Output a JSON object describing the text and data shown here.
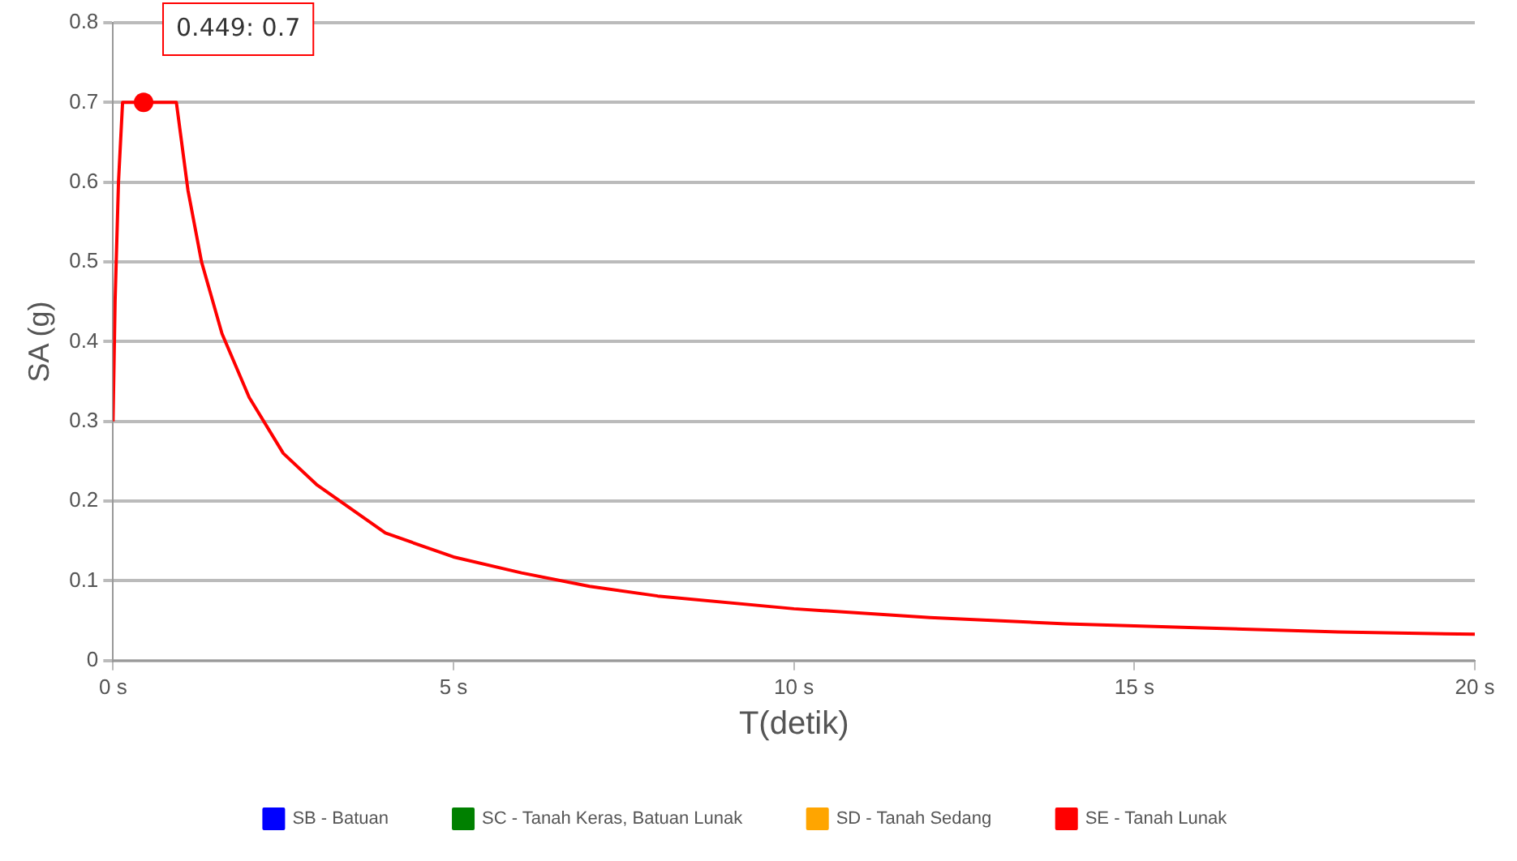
{
  "chart_data": {
    "type": "line",
    "xlabel": "T(detik)",
    "ylabel": "SA (g)",
    "xlim": [
      0,
      20
    ],
    "xticks": [
      {
        "value": 0,
        "label": "0 s"
      },
      {
        "value": 5,
        "label": "5 s"
      },
      {
        "value": 10,
        "label": "10 s"
      },
      {
        "value": 15,
        "label": "15 s"
      },
      {
        "value": 20,
        "label": "20 s"
      }
    ],
    "ylim": [
      0,
      0.8
    ],
    "yticks": [
      0,
      0.1,
      0.2,
      0.3,
      0.4,
      0.5,
      0.6,
      0.7,
      0.8
    ],
    "grid": "y",
    "legend": "bottom",
    "marker": "none",
    "x": [
      0,
      0.03,
      0.08,
      0.14,
      0.93,
      1.1,
      1.3,
      1.6,
      2,
      2.5,
      3,
      3.5,
      4,
      5,
      6,
      7,
      8,
      10,
      12,
      14,
      16,
      18,
      20
    ],
    "series": [
      {
        "name": "SB - Batuan",
        "color": "#0000ff",
        "values": [
          null,
          null,
          null,
          null,
          null,
          null,
          null,
          null,
          null,
          null,
          null,
          null,
          null,
          null,
          null,
          null,
          null,
          null,
          null,
          null,
          null,
          null,
          null
        ]
      },
      {
        "name": "SC - Tanah Keras, Batuan Lunak",
        "color": "#008000",
        "values": [
          null,
          null,
          null,
          null,
          null,
          null,
          null,
          null,
          null,
          null,
          null,
          null,
          null,
          null,
          null,
          null,
          null,
          null,
          null,
          null,
          null,
          null,
          null
        ]
      },
      {
        "name": "SD - Tanah Sedang",
        "color": "#ffa500",
        "values": [
          null,
          null,
          null,
          null,
          null,
          null,
          null,
          null,
          null,
          null,
          null,
          null,
          null,
          null,
          null,
          null,
          null,
          null,
          null,
          null,
          null,
          null,
          null
        ]
      },
      {
        "name": "SE - Tanah Lunak",
        "color": "#ff0000",
        "values": [
          0.3,
          0.45,
          0.6,
          0.7,
          0.7,
          0.59,
          0.5,
          0.41,
          0.33,
          0.26,
          0.22,
          0.19,
          0.16,
          0.13,
          0.11,
          0.093,
          0.081,
          0.065,
          0.054,
          0.046,
          0.041,
          0.036,
          0.033
        ]
      }
    ],
    "annotations": [
      {
        "text": "0.449: 0.7",
        "x": 0.449,
        "y": 0.7
      }
    ]
  }
}
